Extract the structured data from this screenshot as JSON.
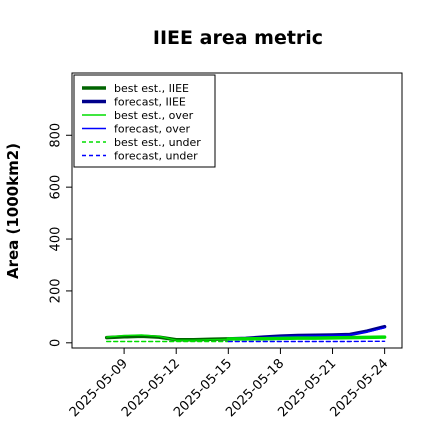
{
  "chart_data": {
    "type": "line",
    "title": "IIEE area metric",
    "xlabel": "",
    "ylabel": "Area (1000km2)",
    "x_ticks": [
      "2025-05-09",
      "2025-05-12",
      "2025-05-15",
      "2025-05-18",
      "2025-05-21",
      "2025-05-24"
    ],
    "highlighted_x_tick": "2025-05-15",
    "highlight_color": "#228b22",
    "y_ticks": [
      "0",
      "200",
      "400",
      "600",
      "800"
    ],
    "ylim": [
      -20,
      1040
    ],
    "xlim": [
      "2025-05-06",
      "2025-05-25"
    ],
    "grid": false,
    "legend_position": "top-left",
    "series": [
      {
        "name": "best est., IIEE",
        "color": "#006400",
        "style": "solid",
        "weight": "thick",
        "x": [
          "2025-05-08",
          "2025-05-09",
          "2025-05-10",
          "2025-05-11",
          "2025-05-12",
          "2025-05-13",
          "2025-05-14",
          "2025-05-15"
        ],
        "values": [
          20,
          23,
          25,
          22,
          12,
          12,
          14,
          15
        ]
      },
      {
        "name": "forecast, IIEE",
        "color": "#00008b",
        "style": "solid",
        "weight": "thick",
        "x": [
          "2025-05-15",
          "2025-05-16",
          "2025-05-17",
          "2025-05-18",
          "2025-05-19",
          "2025-05-20",
          "2025-05-21",
          "2025-05-22",
          "2025-05-23",
          "2025-05-24"
        ],
        "values": [
          15,
          17,
          22,
          26,
          28,
          29,
          30,
          32,
          45,
          62
        ]
      },
      {
        "name": "best est., over",
        "color": "#00dd00",
        "style": "solid",
        "weight": "thin",
        "x": [
          "2025-05-08",
          "2025-05-09",
          "2025-05-10",
          "2025-05-11",
          "2025-05-12",
          "2025-05-13",
          "2025-05-14",
          "2025-05-15"
        ],
        "values": [
          22,
          28,
          30,
          25,
          10,
          10,
          12,
          14
        ]
      },
      {
        "name": "forecast, over",
        "color": "#0000ff",
        "style": "solid",
        "weight": "thin",
        "x": [
          "2025-05-15",
          "2025-05-16",
          "2025-05-17",
          "2025-05-18",
          "2025-05-19",
          "2025-05-20",
          "2025-05-21",
          "2025-05-22",
          "2025-05-23",
          "2025-05-24"
        ],
        "values": [
          14,
          16,
          20,
          24,
          26,
          27,
          28,
          30,
          42,
          58
        ]
      },
      {
        "name": "best est., under",
        "color": "#00dd00",
        "style": "dashed",
        "weight": "thin",
        "x": [
          "2025-05-08",
          "2025-05-09",
          "2025-05-10",
          "2025-05-11",
          "2025-05-12",
          "2025-05-13",
          "2025-05-14",
          "2025-05-15"
        ],
        "values": [
          5,
          5,
          5,
          5,
          5,
          5,
          5,
          5
        ]
      },
      {
        "name": "forecast, under",
        "color": "#0000ff",
        "style": "dashed",
        "weight": "thin",
        "x": [
          "2025-05-15",
          "2025-05-16",
          "2025-05-17",
          "2025-05-18",
          "2025-05-19",
          "2025-05-20",
          "2025-05-21",
          "2025-05-22",
          "2025-05-23",
          "2025-05-24"
        ],
        "values": [
          5,
          5,
          5,
          5,
          5,
          5,
          5,
          5,
          6,
          6
        ]
      },
      {
        "name": "",
        "color": "#00dd00",
        "style": "solid",
        "weight": "thick",
        "x": [
          "2025-05-15",
          "2025-05-16",
          "2025-05-17",
          "2025-05-18",
          "2025-05-19",
          "2025-05-20",
          "2025-05-21",
          "2025-05-22",
          "2025-05-23",
          "2025-05-24"
        ],
        "values": [
          15,
          15,
          16,
          17,
          18,
          18,
          19,
          20,
          21,
          22
        ]
      }
    ]
  }
}
